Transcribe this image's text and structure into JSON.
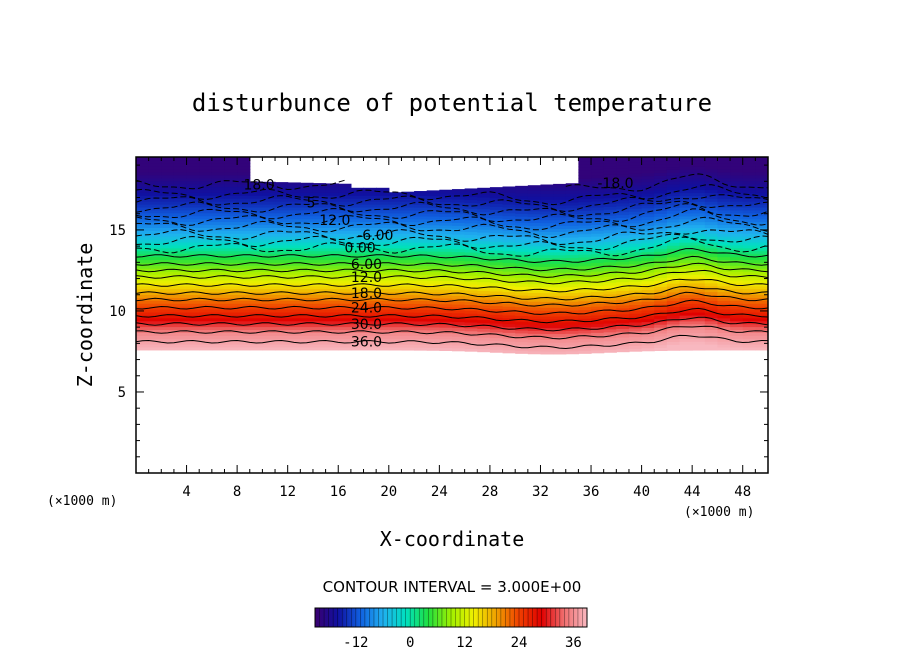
{
  "chart_data": {
    "type": "contour",
    "title": "disturbunce of potential temperature",
    "xlabel": "X-coordinate",
    "ylabel": "Z-coordinate",
    "x_unit": "(×1000 m)",
    "y_unit": "(×1000 m)",
    "xlim": [
      0,
      50
    ],
    "ylim": [
      0,
      19.5
    ],
    "x_ticks": [
      4,
      8,
      12,
      16,
      20,
      24,
      28,
      32,
      36,
      40,
      44,
      48
    ],
    "y_ticks": [
      5,
      10,
      15
    ],
    "contour_interval_text": "CONTOUR INTERVAL = 3.000E+00",
    "level_range": [
      -21,
      39
    ],
    "level_step": 3,
    "contour_labels": [
      {
        "text": "18.0",
        "x": 8.5,
        "y": 17.8
      },
      {
        "text": "12.0",
        "x": 14.5,
        "y": 15.6
      },
      {
        "text": "-6.00",
        "x": 17.5,
        "y": 14.7
      },
      {
        "text": "0.00",
        "x": 16.5,
        "y": 13.9
      },
      {
        "text": "6.00",
        "x": 17.0,
        "y": 12.9
      },
      {
        "text": "12.0",
        "x": 17.0,
        "y": 12.1
      },
      {
        "text": "18.0",
        "x": 17.0,
        "y": 11.1
      },
      {
        "text": "24.0",
        "x": 17.0,
        "y": 10.2
      },
      {
        "text": "30.0",
        "x": 17.0,
        "y": 9.2
      },
      {
        "text": "36.0",
        "x": 17.0,
        "y": 8.1
      },
      {
        "text": "-18.0",
        "x": 36.5,
        "y": 17.9
      },
      {
        "text": "5",
        "x": 13.5,
        "y": 16.7
      }
    ],
    "colorbar": {
      "ticks": [
        -12,
        0,
        12,
        24,
        36
      ],
      "range": [
        -21,
        39
      ]
    },
    "field_profile": [
      {
        "z": 7.5,
        "value": 39
      },
      {
        "z": 8.5,
        "value": 36
      },
      {
        "z": 9.5,
        "value": 28
      },
      {
        "z": 10.5,
        "value": 22
      },
      {
        "z": 11.5,
        "value": 15
      },
      {
        "z": 12.5,
        "value": 8
      },
      {
        "z": 13.5,
        "value": 2
      },
      {
        "z": 14.5,
        "value": -5
      },
      {
        "z": 15.5,
        "value": -10
      },
      {
        "z": 16.5,
        "value": -14
      },
      {
        "z": 17.5,
        "value": -17
      },
      {
        "z": 18.5,
        "value": -20
      }
    ],
    "colors": [
      "#3a0070",
      "#1010a0",
      "#1060e0",
      "#20b0f0",
      "#00e0c0",
      "#20e040",
      "#a0f000",
      "#f0f000",
      "#f0a000",
      "#f04000",
      "#e00000",
      "#f07070",
      "#f8b8c0"
    ]
  }
}
